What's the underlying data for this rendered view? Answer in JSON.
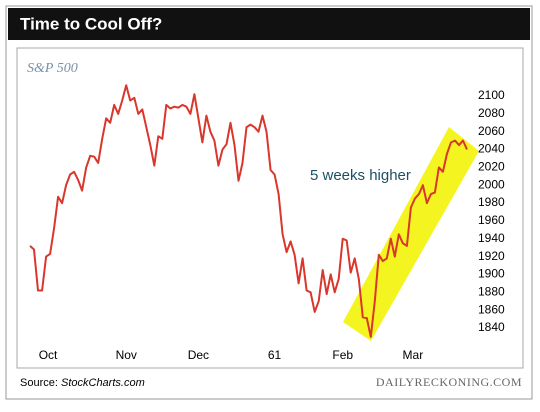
{
  "chart_data": {
    "type": "line",
    "title": "Time to Cool Off?",
    "subtitle": "S&P 500",
    "annotation": "5 weeks higher",
    "source_label": "Source:",
    "source": "StockCharts.com",
    "brand": "DAILYRECKONING.COM",
    "x": [
      0,
      1,
      2,
      3,
      4,
      5,
      6,
      7,
      8,
      9,
      10,
      11,
      12,
      13,
      14,
      15,
      16,
      17,
      18,
      19,
      20,
      21,
      22,
      23,
      24,
      25,
      26,
      27,
      28,
      29,
      30,
      31,
      32,
      33,
      34,
      35,
      36,
      37,
      38,
      39,
      40,
      41,
      42,
      43,
      44,
      45,
      46,
      47,
      48,
      49,
      50,
      51,
      52,
      53,
      54,
      55,
      56,
      57,
      58,
      59,
      60,
      61,
      62,
      63,
      64,
      65,
      66,
      67,
      68,
      69,
      70,
      71,
      72,
      73,
      74,
      75,
      76,
      77,
      78,
      79,
      80,
      81,
      82,
      83,
      84,
      85,
      86,
      87,
      88,
      89,
      90,
      91,
      92,
      93,
      94,
      95,
      96,
      97,
      98,
      99,
      100,
      101,
      102,
      103,
      104,
      105,
      106,
      107,
      108,
      109
    ],
    "series": [
      {
        "name": "S&P 500",
        "color": "#d9362c",
        "values": [
          1932,
          1928,
          1882,
          1882,
          1920,
          1923,
          1952,
          1987,
          1980,
          2000,
          2012,
          2015,
          2006,
          1994,
          2020,
          2033,
          2032,
          2025,
          2052,
          2075,
          2070,
          2090,
          2080,
          2095,
          2112,
          2095,
          2098,
          2080,
          2085,
          2065,
          2045,
          2022,
          2055,
          2052,
          2090,
          2086,
          2088,
          2087,
          2090,
          2088,
          2080,
          2102,
          2075,
          2048,
          2078,
          2060,
          2050,
          2022,
          2040,
          2046,
          2070,
          2045,
          2005,
          2025,
          2065,
          2068,
          2065,
          2060,
          2078,
          2060,
          2017,
          2012,
          1990,
          1945,
          1925,
          1937,
          1922,
          1890,
          1918,
          1882,
          1880,
          1858,
          1870,
          1905,
          1878,
          1900,
          1880,
          1895,
          1940,
          1938,
          1902,
          1918,
          1895,
          1852,
          1851,
          1830,
          1870,
          1922,
          1915,
          1918,
          1940,
          1920,
          1945,
          1935,
          1932,
          1975,
          1985,
          1990,
          2000,
          1980,
          1990,
          1992,
          2020,
          2015,
          2035,
          2048,
          2050,
          2045,
          2050,
          2040
        ]
      }
    ],
    "xlim": [
      -3,
      110
    ],
    "xticks": [
      {
        "value": 4.5,
        "label": "Oct"
      },
      {
        "value": 24,
        "label": "Nov"
      },
      {
        "value": 42,
        "label": "Dec"
      },
      61,
      {
        "value": 78,
        "label": "Feb"
      },
      {
        "value": 95.5,
        "label": "Mar"
      }
    ],
    "ylim": [
      1820,
      2124
    ],
    "yticks": [
      1840,
      1860,
      1880,
      1900,
      1920,
      1940,
      1960,
      1980,
      2000,
      2020,
      2040,
      2060,
      2080,
      2100
    ],
    "grid": false
  }
}
